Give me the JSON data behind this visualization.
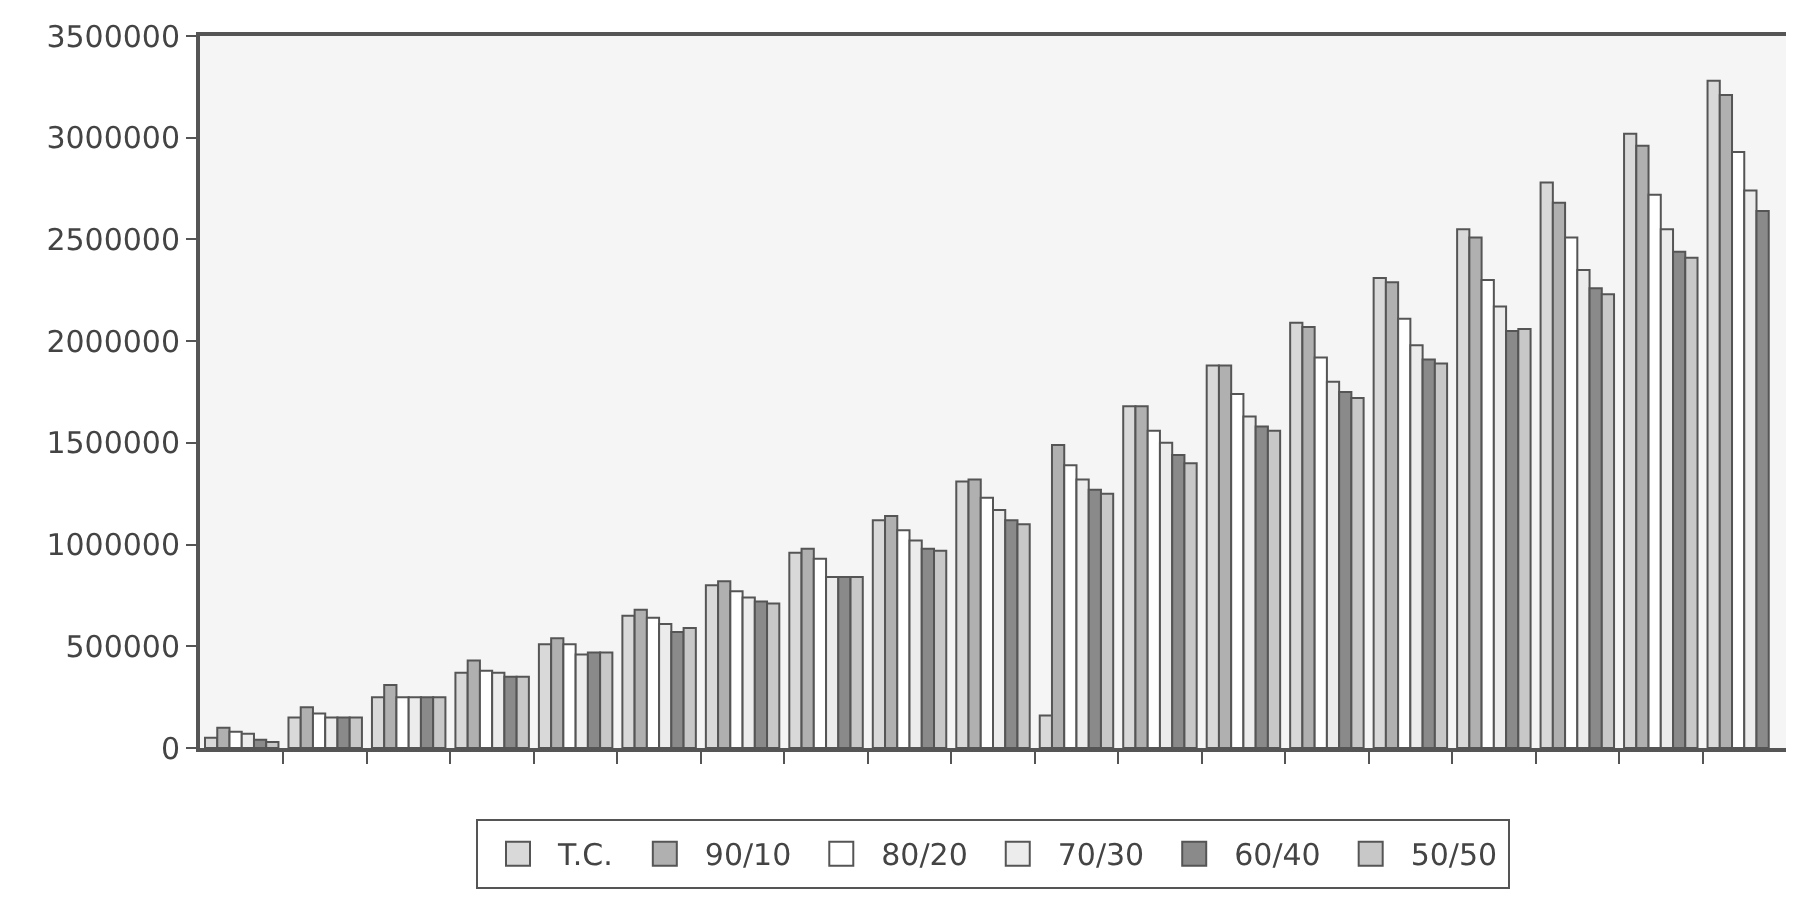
{
  "chart_data": {
    "type": "bar",
    "categories": [
      null,
      null,
      null,
      null,
      null,
      null,
      null,
      null,
      null,
      null,
      null,
      null,
      null,
      null,
      null,
      null,
      null,
      null,
      null
    ],
    "ylim": [
      0,
      3500000
    ],
    "yticks": [
      0,
      500000,
      1000000,
      1500000,
      2000000,
      2500000,
      3000000,
      3500000
    ],
    "grid": false,
    "legend": "bottom",
    "series": [
      {
        "name": "T.C.",
        "color": "#d9d9d9",
        "values": [
          50000,
          150000,
          250000,
          370000,
          510000,
          650000,
          800000,
          960000,
          1120000,
          1310000,
          160000,
          1680000,
          1880000,
          2090000,
          2310000,
          2550000,
          2780000,
          3020000,
          3280000
        ]
      },
      {
        "name": "90/10",
        "color": "#b0b0b0",
        "values": [
          100000,
          200000,
          310000,
          430000,
          540000,
          680000,
          820000,
          980000,
          1140000,
          1320000,
          1490000,
          1680000,
          1880000,
          2070000,
          2290000,
          2510000,
          2680000,
          2960000,
          3210000
        ]
      },
      {
        "name": "80/20",
        "color": "#ffffff",
        "values": [
          80000,
          170000,
          250000,
          380000,
          510000,
          640000,
          770000,
          930000,
          1070000,
          1230000,
          1390000,
          1560000,
          1740000,
          1920000,
          2110000,
          2300000,
          2510000,
          2720000,
          2930000
        ]
      },
      {
        "name": "70/30",
        "color": "#ececec",
        "values": [
          70000,
          150000,
          250000,
          370000,
          460000,
          610000,
          740000,
          840000,
          1020000,
          1170000,
          1320000,
          1500000,
          1630000,
          1800000,
          1980000,
          2170000,
          2350000,
          2550000,
          2740000
        ]
      },
      {
        "name": "60/40",
        "color": "#8a8a8a",
        "values": [
          40000,
          150000,
          250000,
          350000,
          470000,
          570000,
          720000,
          840000,
          980000,
          1120000,
          1270000,
          1440000,
          1580000,
          1750000,
          1910000,
          2050000,
          2260000,
          2440000,
          2640000
        ]
      },
      {
        "name": "50/50",
        "color": "#c8c8c8",
        "values": [
          30000,
          150000,
          250000,
          350000,
          470000,
          590000,
          710000,
          840000,
          970000,
          1100000,
          1250000,
          1400000,
          1560000,
          1720000,
          1890000,
          2060000,
          2230000,
          2410000,
          null
        ]
      }
    ]
  }
}
